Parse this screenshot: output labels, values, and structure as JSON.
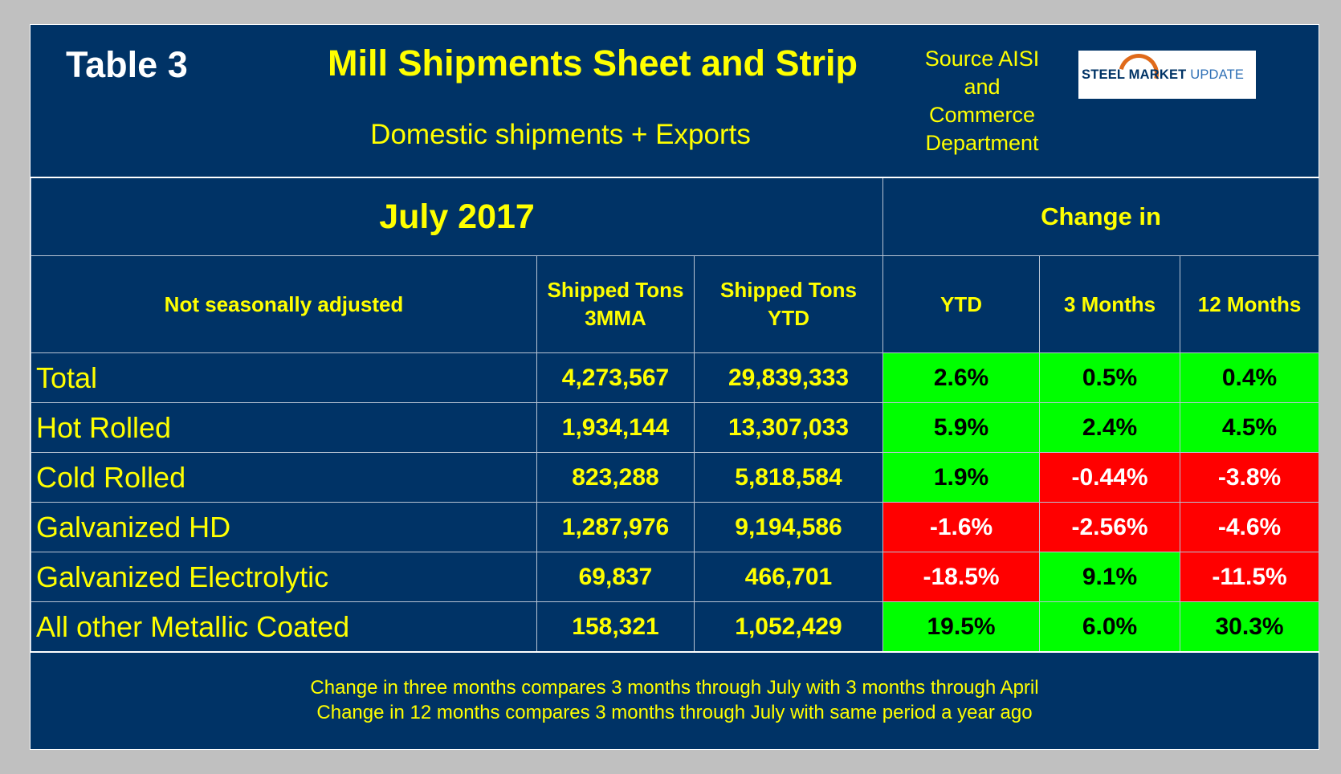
{
  "header": {
    "table_no": "Table 3",
    "title": "Mill Shipments Sheet and Strip",
    "subtitle": "Domestic shipments + Exports",
    "source_lines": [
      "Source AISI",
      "and",
      "Commerce",
      "Department"
    ],
    "logo": {
      "part1": "STEEL ",
      "part2": "MARKET ",
      "part3": "UPDATE"
    }
  },
  "table": {
    "period": "July 2017",
    "change_in": "Change in",
    "col_headers": [
      "Not seasonally adjusted",
      "Shipped Tons 3MMA",
      "Shipped Tons YTD",
      "YTD",
      "3 Months",
      "12 Months"
    ],
    "col_headers_lines": {
      "c1": [
        "Shipped Tons",
        "3MMA"
      ],
      "c2": [
        "Shipped Tons",
        "YTD"
      ]
    },
    "rows": [
      {
        "label": "Total",
        "mma": "4,273,567",
        "ytd_tons": "29,839,333",
        "ytd": "2.6%",
        "m3": "0.5%",
        "m12": "0.4%"
      },
      {
        "label": "Hot Rolled",
        "mma": "1,934,144",
        "ytd_tons": "13,307,033",
        "ytd": "5.9%",
        "m3": "2.4%",
        "m12": "4.5%"
      },
      {
        "label": "Cold Rolled",
        "mma": "823,288",
        "ytd_tons": "5,818,584",
        "ytd": "1.9%",
        "m3": "-0.44%",
        "m12": "-3.8%"
      },
      {
        "label": "Galvanized HD",
        "mma": "1,287,976",
        "ytd_tons": "9,194,586",
        "ytd": "-1.6%",
        "m3": "-2.56%",
        "m12": "-4.6%"
      },
      {
        "label": "Galvanized Electrolytic",
        "mma": "69,837",
        "ytd_tons": "466,701",
        "ytd": "-18.5%",
        "m3": "9.1%",
        "m12": "-11.5%"
      },
      {
        "label": "All other Metallic Coated",
        "mma": "158,321",
        "ytd_tons": "1,052,429",
        "ytd": "19.5%",
        "m3": "6.0%",
        "m12": "30.3%"
      }
    ]
  },
  "notes": [
    "Change in three months compares 3 months through July with 3 months through April",
    "Change in 12 months compares 3 months through July with same period a year ago"
  ],
  "colors": {
    "background": "#003366",
    "text": "#ffff00",
    "positive": "#00ff00",
    "negative": "#ff0000"
  }
}
